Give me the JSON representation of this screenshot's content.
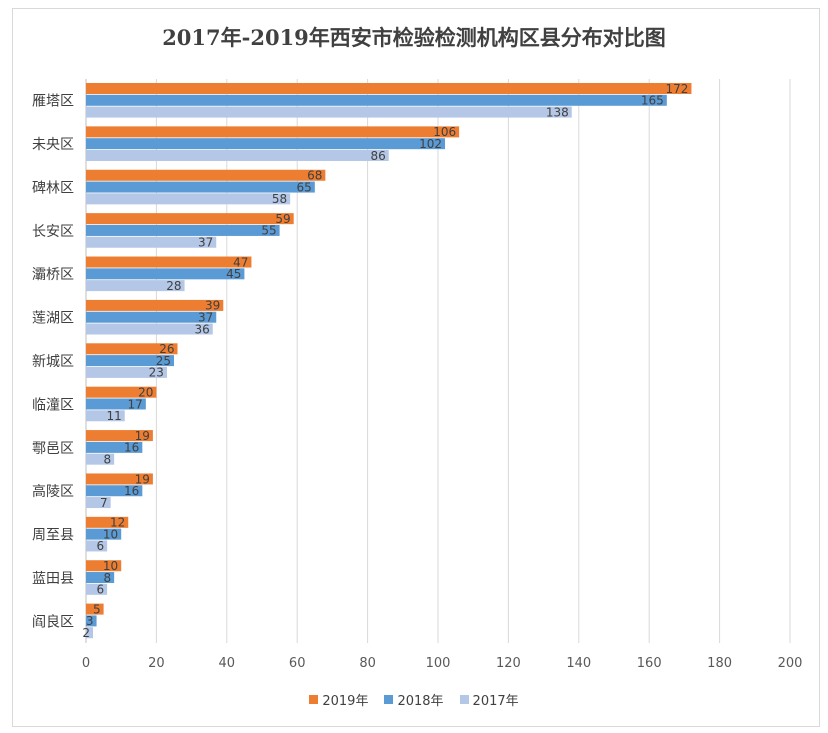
{
  "chart_data": {
    "type": "bar",
    "orientation": "horizontal",
    "title": "2017年-2019年西安市检验检测机构区县分布对比图",
    "categories": [
      "雁塔区",
      "未央区",
      "碑林区",
      "长安区",
      "灞桥区",
      "莲湖区",
      "新城区",
      "临潼区",
      "鄠邑区",
      "高陵区",
      "周至县",
      "蓝田县",
      "阎良区"
    ],
    "series": [
      {
        "name": "2019年",
        "color": "#ed7d31",
        "values": [
          172,
          106,
          68,
          59,
          47,
          39,
          26,
          20,
          19,
          19,
          12,
          10,
          5
        ]
      },
      {
        "name": "2018年",
        "color": "#5b9bd5",
        "values": [
          165,
          102,
          65,
          55,
          45,
          37,
          25,
          17,
          16,
          16,
          10,
          8,
          3
        ]
      },
      {
        "name": "2017年",
        "color": "#b4c7e7",
        "values": [
          138,
          86,
          58,
          37,
          28,
          36,
          23,
          11,
          8,
          7,
          6,
          6,
          2
        ]
      }
    ],
    "xlim": [
      0,
      200
    ],
    "xticks": [
      0,
      20,
      40,
      60,
      80,
      100,
      120,
      140,
      160,
      180,
      200
    ],
    "grid": true,
    "legend_position": "bottom"
  }
}
